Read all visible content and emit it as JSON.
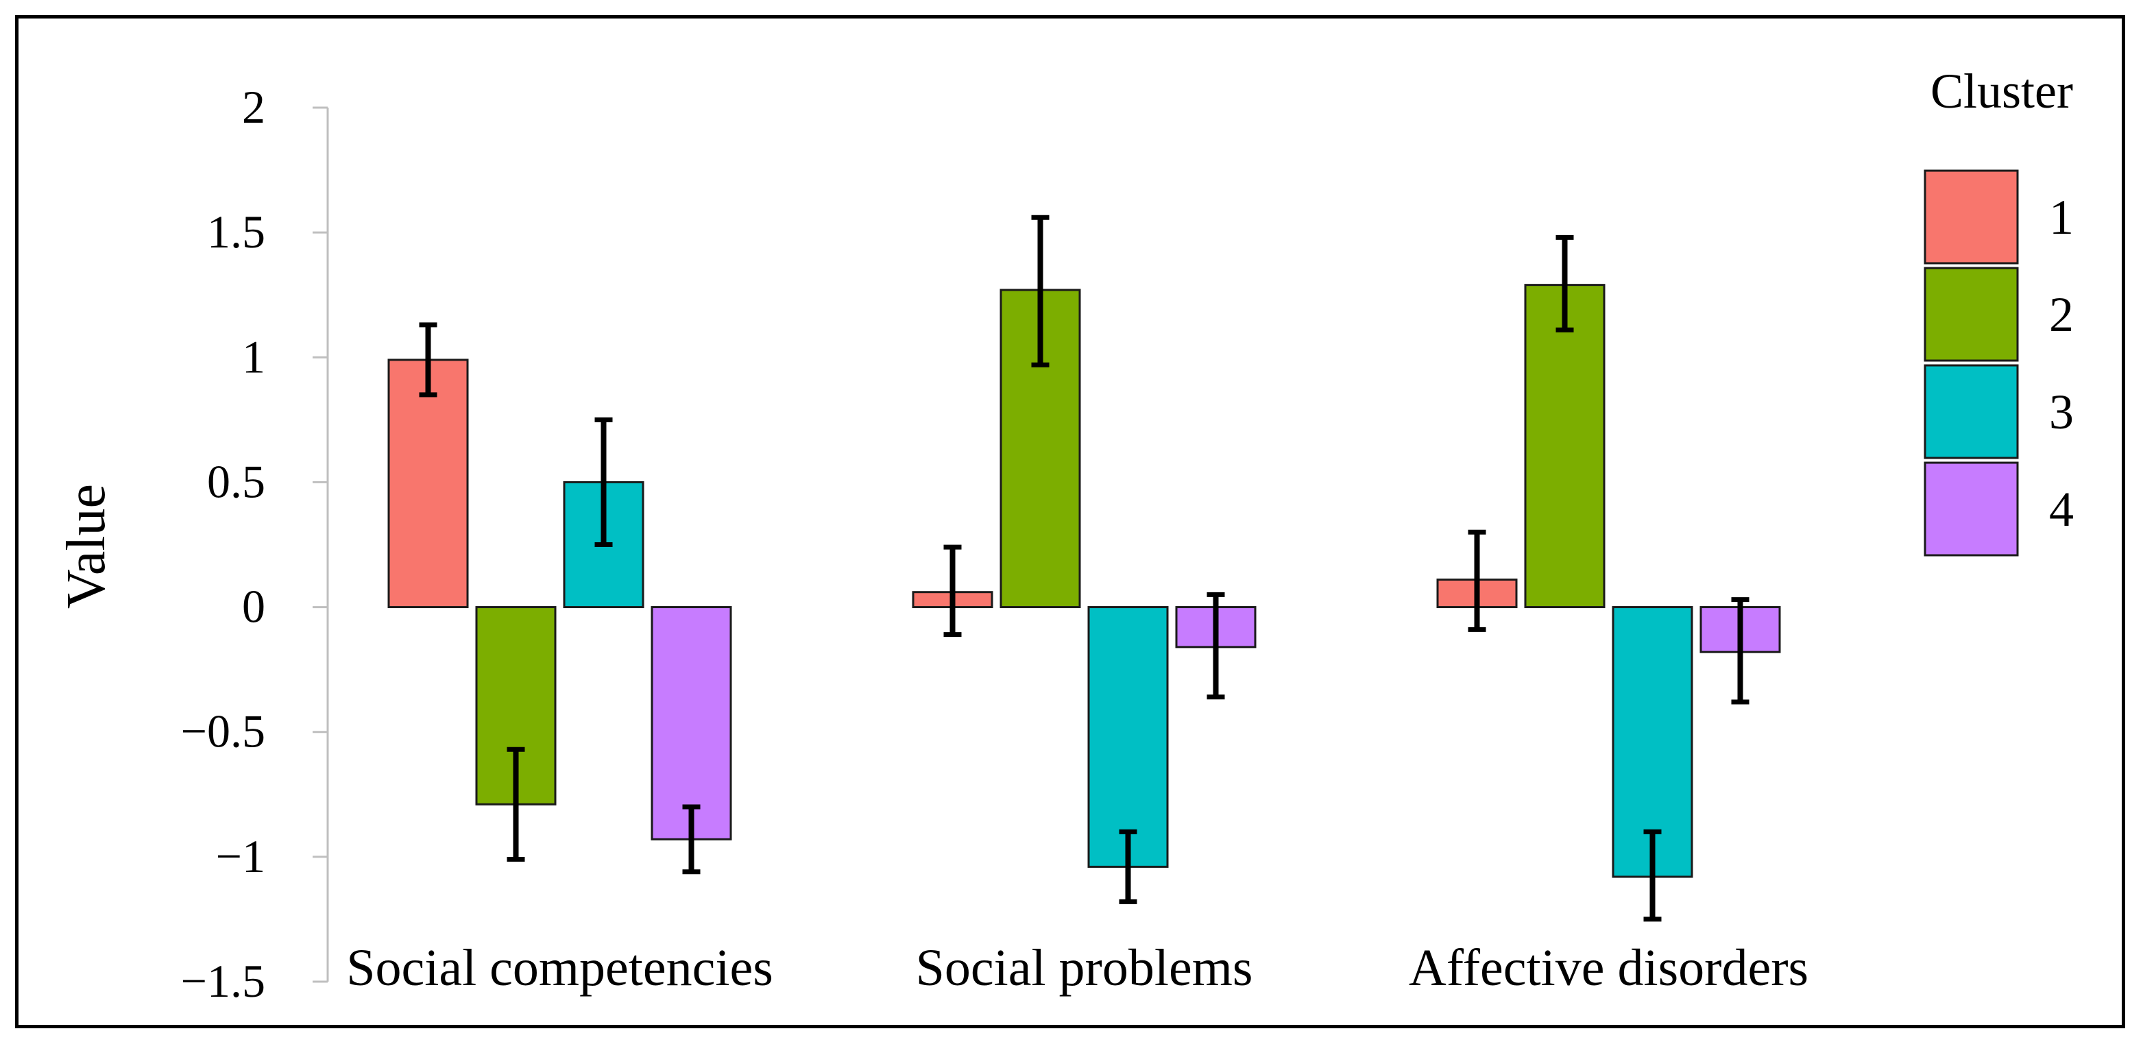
{
  "chart_data": {
    "type": "bar",
    "title": "",
    "xlabel": "",
    "ylabel": "Value",
    "ylim": [
      -1.5,
      2
    ],
    "yticks": [
      2,
      1.5,
      1,
      0.5,
      0,
      -0.5,
      -1,
      -1.5
    ],
    "ytick_labels": [
      "2",
      "1.5",
      "1",
      "0.5",
      "0",
      "−0.5",
      "−1",
      "−1.5"
    ],
    "categories": [
      "Social competencies",
      "Social problems",
      "Affective disorders"
    ],
    "legend_title": "Cluster",
    "legend_position": "right",
    "series": [
      {
        "name": "1",
        "color": "#F8766D",
        "values": [
          0.99,
          0.06,
          0.11
        ],
        "err_low": [
          0.85,
          -0.11,
          -0.09
        ],
        "err_high": [
          1.13,
          0.24,
          0.3
        ]
      },
      {
        "name": "2",
        "color": "#7CAE00",
        "values": [
          -0.79,
          1.27,
          1.29
        ],
        "err_low": [
          -1.01,
          0.97,
          1.11
        ],
        "err_high": [
          -0.57,
          1.56,
          1.48
        ]
      },
      {
        "name": "3",
        "color": "#00BFC4",
        "values": [
          0.5,
          -1.04,
          -1.08
        ],
        "err_low": [
          0.25,
          -1.18,
          -1.25
        ],
        "err_high": [
          0.75,
          -0.9,
          -0.9
        ]
      },
      {
        "name": "4",
        "color": "#C77CFF",
        "values": [
          -0.93,
          -0.16,
          -0.18
        ],
        "err_low": [
          -1.06,
          -0.36,
          -0.38
        ],
        "err_high": [
          -0.8,
          0.05,
          0.03
        ]
      }
    ]
  }
}
